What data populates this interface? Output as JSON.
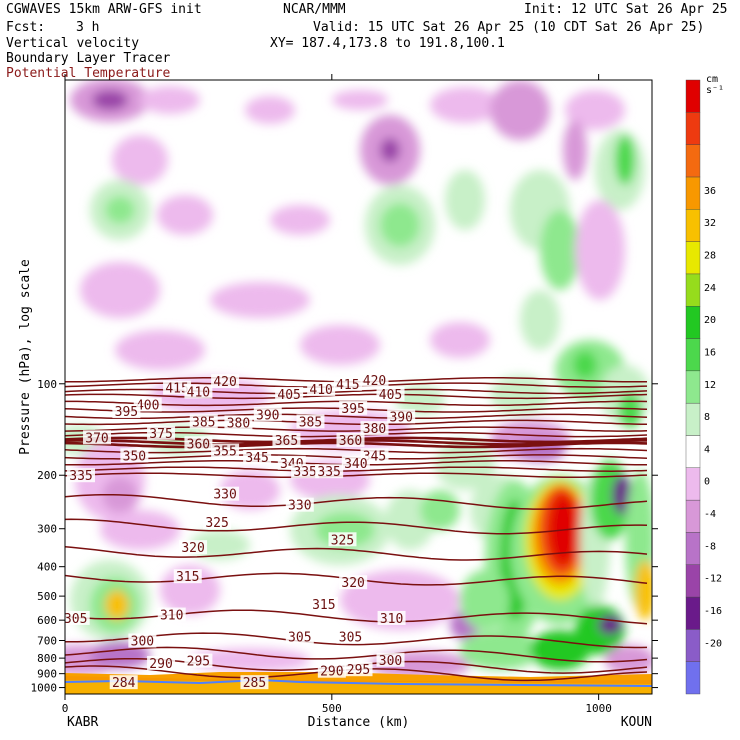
{
  "header": {
    "model": "CGWAVES 15km ARW-GFS init",
    "org": "NCAR/MMM",
    "init": "Init: 12 UTC Sat 26 Apr 25",
    "fcst_label": "Fcst:",
    "fcst_value": "3 h",
    "valid": "Valid: 15 UTC Sat 26 Apr 25 (10 CDT Sat 26 Apr 25)",
    "field1": "Vertical velocity",
    "xy": "XY= 187.4,173.8 to 191.8,100.1",
    "field2": "Boundary Layer Tracer",
    "field3": "Potential Temperature",
    "field3_color": "#8b1a1a"
  },
  "colorbar": {
    "unit": "cm s⁻¹",
    "colors": [
      "#7070ee",
      "#8a5cc8",
      "#6a1a8a",
      "#9a44a8",
      "#b873c8",
      "#d898d8",
      "#edbaed",
      "#ffffff",
      "#c8f0c8",
      "#8ee88e",
      "#4cd84c",
      "#22c822",
      "#96dc1c",
      "#e8e800",
      "#f8c000",
      "#f89800",
      "#f46a10",
      "#ee3a10",
      "#e00000"
    ],
    "labels": [
      "-20",
      "-16",
      "-12",
      "-8",
      "-4",
      "0",
      "4",
      "8",
      "12",
      "16",
      "20",
      "24",
      "28",
      "32",
      "36"
    ]
  },
  "chart_data": {
    "type": "heatmap",
    "ylabel": "Pressure (hPa), log scale",
    "xlabel": "Distance (km)",
    "x_ticks": [
      "0",
      "500",
      "1000"
    ],
    "x_tick_values": [
      0,
      500,
      1000
    ],
    "xlim": [
      0,
      1100
    ],
    "ylim": [
      1050,
      10
    ],
    "y_ticks": [
      100,
      200,
      300,
      400,
      500,
      600,
      700,
      800,
      900,
      1000
    ],
    "endpoint_left": "KABR",
    "endpoint_right": "KOUN",
    "theta_lines": [
      {
        "label": "420",
        "p": 97
      },
      {
        "label": "415",
        "p": 101
      },
      {
        "label": "410",
        "p": 106
      },
      {
        "label": "405",
        "p": 110
      },
      {
        "label": "400",
        "p": 116
      },
      {
        "label": "395",
        "p": 122
      },
      {
        "label": "390",
        "p": 128
      },
      {
        "label": "385",
        "p": 134
      },
      {
        "label": "380",
        "p": 141
      },
      {
        "label": "375",
        "p": 147
      },
      {
        "label": "370",
        "p": 153
      },
      {
        "label": "365",
        "p": 156
      },
      {
        "label": "360",
        "p": 159
      },
      {
        "label": "355",
        "p": 166
      },
      {
        "label": "350",
        "p": 174
      },
      {
        "label": "345",
        "p": 182
      },
      {
        "label": "340",
        "p": 191
      },
      {
        "label": "335",
        "p": 200
      },
      {
        "label": "330",
        "p": 240
      },
      {
        "label": "325",
        "p": 290
      },
      {
        "label": "320",
        "p": 355
      },
      {
        "label": "315",
        "p": 430
      },
      {
        "label": "310",
        "p": 570
      },
      {
        "label": "305",
        "p": 680
      },
      {
        "label": "300",
        "p": 760
      },
      {
        "label": "295",
        "p": 830
      },
      {
        "label": "290",
        "p": 880
      }
    ],
    "theta_labels_placed": [
      {
        "t": "420",
        "x": 580,
        "p": 97
      },
      {
        "t": "415",
        "x": 210,
        "p": 103
      },
      {
        "t": "420",
        "x": 300,
        "p": 98
      },
      {
        "t": "410",
        "x": 250,
        "p": 106
      },
      {
        "t": "405",
        "x": 420,
        "p": 108
      },
      {
        "t": "410",
        "x": 480,
        "p": 104
      },
      {
        "t": "415",
        "x": 530,
        "p": 100
      },
      {
        "t": "405",
        "x": 610,
        "p": 108
      },
      {
        "t": "400",
        "x": 155,
        "p": 117
      },
      {
        "t": "395",
        "x": 115,
        "p": 123
      },
      {
        "t": "395",
        "x": 540,
        "p": 120
      },
      {
        "t": "390",
        "x": 380,
        "p": 126
      },
      {
        "t": "390",
        "x": 630,
        "p": 128
      },
      {
        "t": "385",
        "x": 260,
        "p": 133
      },
      {
        "t": "380",
        "x": 325,
        "p": 134
      },
      {
        "t": "385",
        "x": 460,
        "p": 133
      },
      {
        "t": "380",
        "x": 580,
        "p": 140
      },
      {
        "t": "375",
        "x": 180,
        "p": 145
      },
      {
        "t": "370",
        "x": 60,
        "p": 150
      },
      {
        "t": "360",
        "x": 250,
        "p": 157
      },
      {
        "t": "365",
        "x": 415,
        "p": 153
      },
      {
        "t": "360",
        "x": 535,
        "p": 153
      },
      {
        "t": "355",
        "x": 300,
        "p": 166
      },
      {
        "t": "350",
        "x": 130,
        "p": 172
      },
      {
        "t": "345",
        "x": 360,
        "p": 174
      },
      {
        "t": "345",
        "x": 580,
        "p": 172
      },
      {
        "t": "340",
        "x": 425,
        "p": 182
      },
      {
        "t": "340",
        "x": 545,
        "p": 182
      },
      {
        "t": "335",
        "x": 30,
        "p": 200
      },
      {
        "t": "335",
        "x": 450,
        "p": 194
      },
      {
        "t": "335",
        "x": 495,
        "p": 194
      },
      {
        "t": "330",
        "x": 300,
        "p": 230
      },
      {
        "t": "330",
        "x": 440,
        "p": 250
      },
      {
        "t": "325",
        "x": 285,
        "p": 285
      },
      {
        "t": "325",
        "x": 520,
        "p": 325
      },
      {
        "t": "320",
        "x": 240,
        "p": 345
      },
      {
        "t": "320",
        "x": 540,
        "p": 450
      },
      {
        "t": "315",
        "x": 230,
        "p": 430
      },
      {
        "t": "315",
        "x": 485,
        "p": 530
      },
      {
        "t": "310",
        "x": 200,
        "p": 575
      },
      {
        "t": "310",
        "x": 612,
        "p": 590
      },
      {
        "t": "305",
        "x": 20,
        "p": 590
      },
      {
        "t": "305",
        "x": 440,
        "p": 680
      },
      {
        "t": "305",
        "x": 535,
        "p": 680
      },
      {
        "t": "300",
        "x": 145,
        "p": 700
      },
      {
        "t": "300",
        "x": 610,
        "p": 810
      },
      {
        "t": "290",
        "x": 180,
        "p": 830
      },
      {
        "t": "295",
        "x": 250,
        "p": 815
      },
      {
        "t": "290",
        "x": 500,
        "p": 880
      },
      {
        "t": "295",
        "x": 550,
        "p": 870
      },
      {
        "t": "284",
        "x": 110,
        "p": 960
      },
      {
        "t": "285",
        "x": 355,
        "p": 960
      }
    ]
  }
}
